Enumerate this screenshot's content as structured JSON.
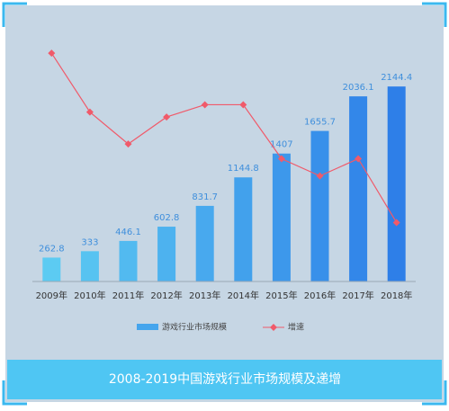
{
  "chart_data": {
    "type": "bar-line",
    "title": "2008-2019中国游戏行业市场规模及递增",
    "categories": [
      "2009年",
      "2010年",
      "2011年",
      "2012年",
      "2013年",
      "2014年",
      "2015年",
      "2016年",
      "2017年",
      "2018年"
    ],
    "series": [
      {
        "name": "游戏行业市场规模",
        "color": [
          "#5ccbf2",
          "#2e7fe8"
        ],
        "values": [
          262.8,
          333,
          446.1,
          602.8,
          831.7,
          1144.8,
          1407,
          1655.7,
          2036.1,
          2144.4
        ]
      },
      {
        "name": "增速",
        "color": "#f05a6a",
        "axis": "y2",
        "values": [
          93,
          69,
          56,
          67,
          72,
          72,
          50,
          43,
          50,
          24
        ]
      }
    ],
    "ylim": [
      0,
      2700
    ],
    "y2lim": [
      0,
      100
    ]
  }
}
